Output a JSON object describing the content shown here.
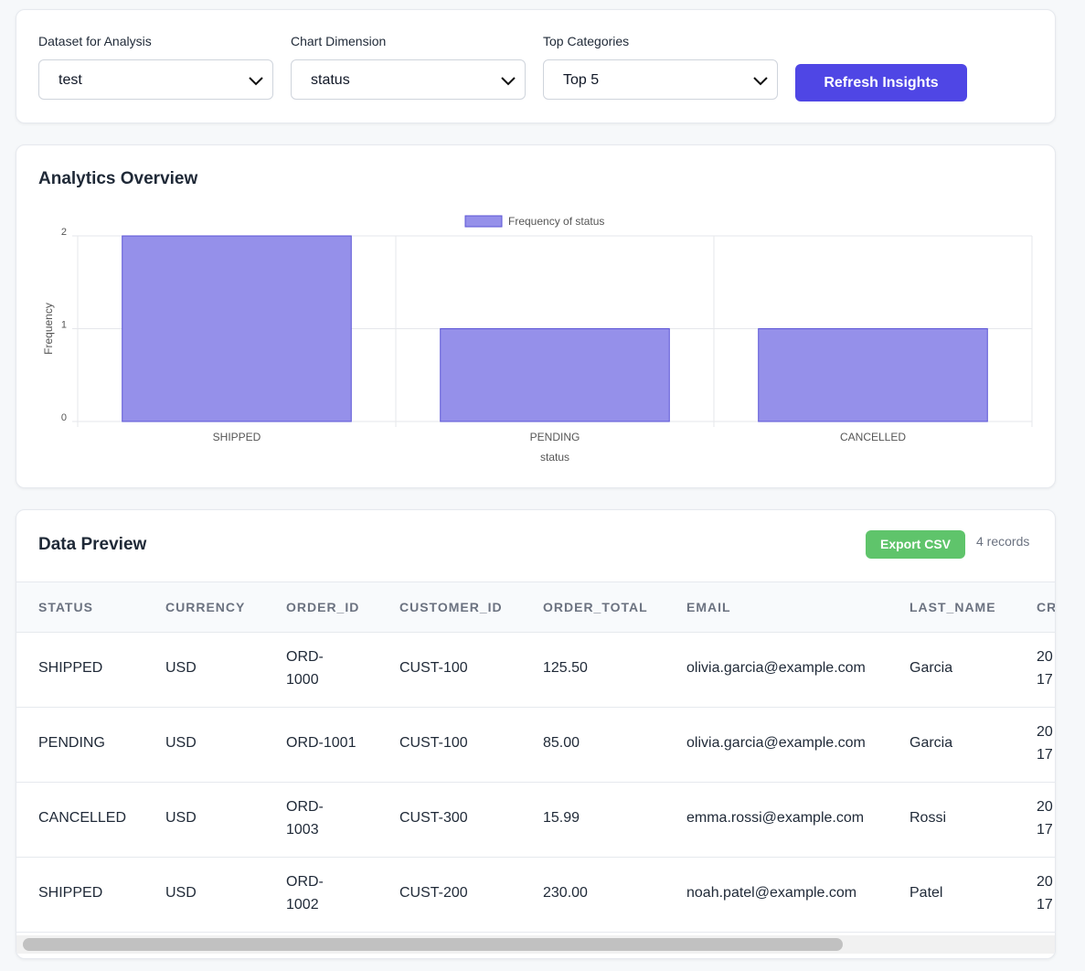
{
  "controls": {
    "dataset_label": "Dataset for Analysis",
    "dataset_value": "test",
    "dimension_label": "Chart Dimension",
    "dimension_value": "status",
    "top_label": "Top Categories",
    "top_value": "Top 5",
    "refresh_label": "Refresh Insights"
  },
  "overview": {
    "title": "Analytics Overview"
  },
  "chart_data": {
    "type": "bar",
    "categories": [
      "SHIPPED",
      "PENDING",
      "CANCELLED"
    ],
    "series": [
      {
        "name": "Frequency of status",
        "values": [
          2,
          1,
          1
        ]
      }
    ],
    "title": "",
    "xlabel": "status",
    "ylabel": "Frequency",
    "ylim": [
      0,
      2
    ],
    "yticks": [
      0,
      1,
      2
    ],
    "grid": true,
    "legend": "top-center",
    "colors": {
      "bar_fill": "#9590ea",
      "bar_stroke": "#5b54d6"
    }
  },
  "preview": {
    "title": "Data Preview",
    "export_label": "Export CSV",
    "records": "4 records",
    "columns": [
      "STATUS",
      "CURRENCY",
      "ORDER_ID",
      "CUSTOMER_ID",
      "ORDER_TOTAL",
      "EMAIL",
      "LAST_NAME",
      "CR"
    ],
    "rows": [
      [
        "SHIPPED",
        "USD",
        "ORD-1000",
        "CUST-100",
        "125.50",
        "olivia.garcia@example.com",
        "Garcia",
        "20 17"
      ],
      [
        "PENDING",
        "USD",
        "ORD-1001",
        "CUST-100",
        "85.00",
        "olivia.garcia@example.com",
        "Garcia",
        "20 17"
      ],
      [
        "CANCELLED",
        "USD",
        "ORD-1003",
        "CUST-300",
        "15.99",
        "emma.rossi@example.com",
        "Rossi",
        "20 17"
      ],
      [
        "SHIPPED",
        "USD",
        "ORD-1002",
        "CUST-200",
        "230.00",
        "noah.patel@example.com",
        "Patel",
        "20 17"
      ]
    ]
  },
  "colors": {
    "accent": "#4f46e5",
    "export": "#5fc46b"
  }
}
